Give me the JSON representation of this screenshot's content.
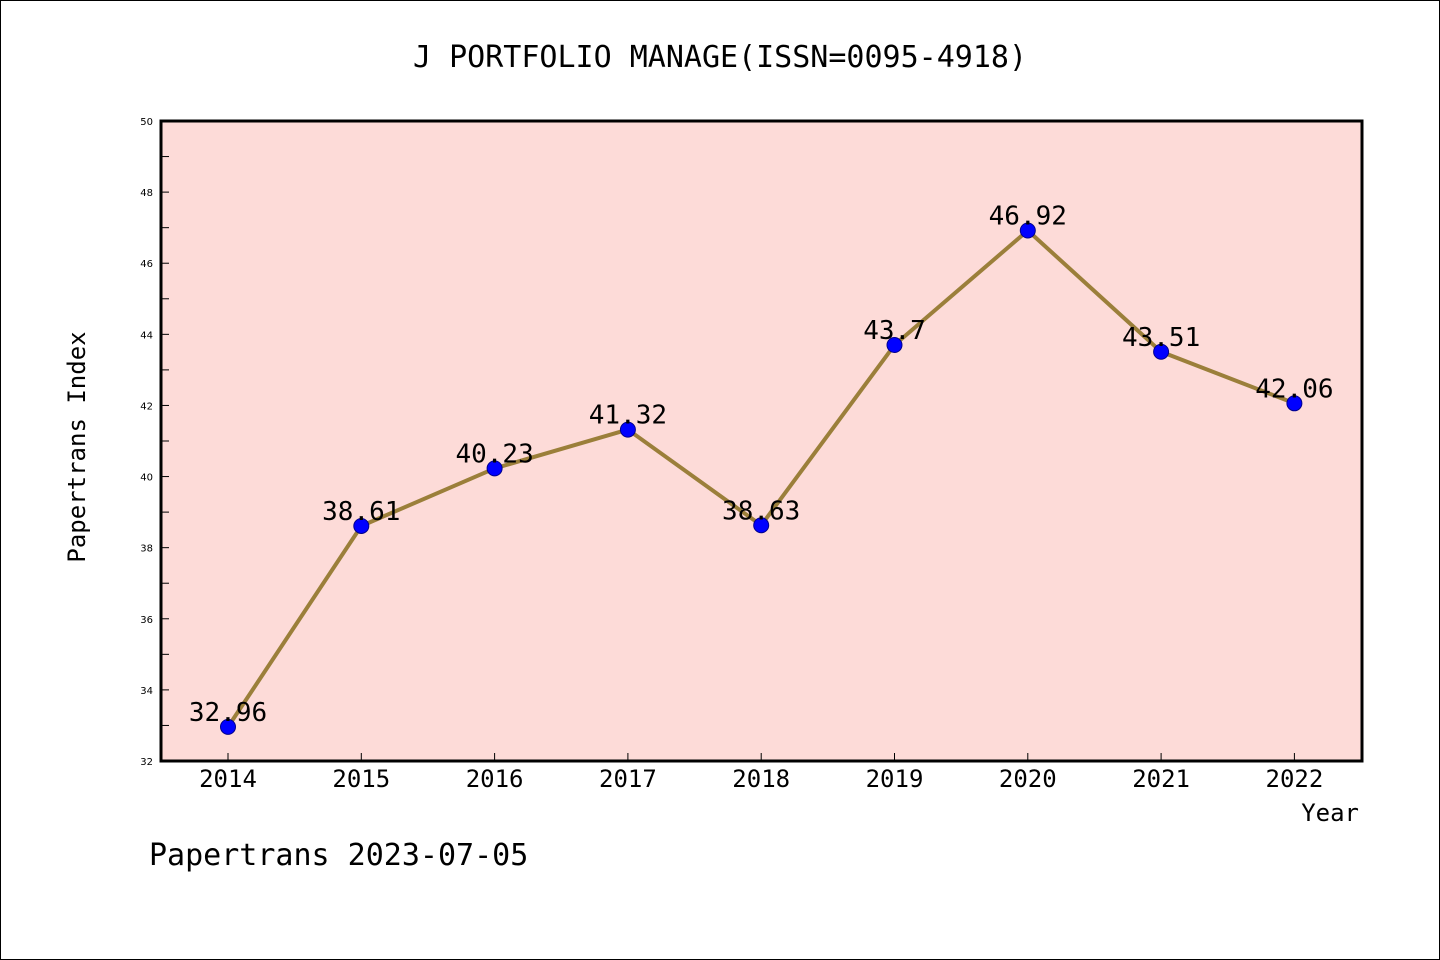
{
  "chart_data": {
    "type": "line",
    "title": "J PORTFOLIO MANAGE(ISSN=0095-4918)",
    "xlabel": "Year",
    "ylabel": "Papertrans Index",
    "categories": [
      "2014",
      "2015",
      "2016",
      "2017",
      "2018",
      "2019",
      "2020",
      "2021",
      "2022"
    ],
    "series": [
      {
        "values": [
          32.96,
          38.61,
          40.23,
          41.32,
          38.63,
          43.7,
          46.92,
          43.51,
          42.06
        ],
        "labels": [
          "32.96",
          "38.61",
          "40.23",
          "41.32",
          "38.63",
          "43.7",
          "46.92",
          "43.51",
          "42.06"
        ]
      }
    ],
    "ylim": [
      32,
      50
    ],
    "yticks": [
      "32",
      "34",
      "36",
      "38",
      "40",
      "42",
      "44",
      "46",
      "48",
      "50"
    ],
    "grid": false,
    "legend": "none",
    "colors": {
      "plot_background": "#fddbd8",
      "line": "#9b7f3a",
      "marker_fill": "#0000ff",
      "marker_edge": "#00008b"
    }
  },
  "footer": "Papertrans 2023-07-05"
}
